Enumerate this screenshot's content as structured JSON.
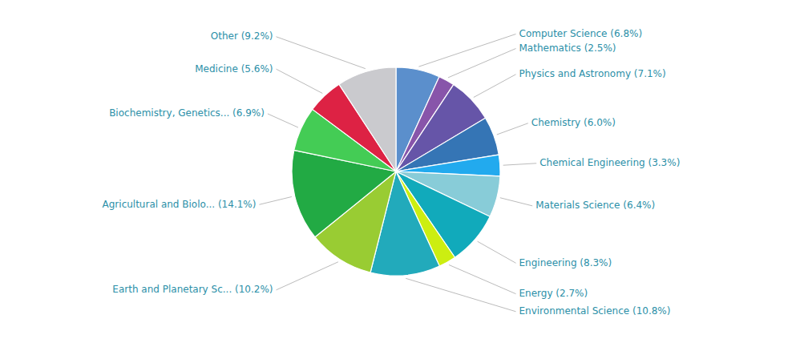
{
  "chart_data": {
    "type": "pie",
    "categories": [
      "Computer Science (6.8%)",
      "Mathematics (2.5%)",
      "Physics and Astronomy (7.1%)",
      "Chemistry (6.0%)",
      "Chemical Engineering (3.3%)",
      "Materials Science (6.4%)",
      "Engineering (8.3%)",
      "Energy (2.7%)",
      "Environmental Science (10.8%)",
      "Earth and Planetary Sc... (10.2%)",
      "Agricultural and Biolo... (14.1%)",
      "Biochemistry, Genetics... (6.9%)",
      "Medicine (5.6%)",
      "Other (9.2%)"
    ],
    "values": [
      6.8,
      2.5,
      7.1,
      6.0,
      3.3,
      6.4,
      8.3,
      2.7,
      10.8,
      10.2,
      14.1,
      6.9,
      5.6,
      9.2
    ],
    "colors": [
      "#5B8FCC",
      "#8855AA",
      "#6655A8",
      "#3575B5",
      "#22AAEE",
      "#88CCD8",
      "#11AABB",
      "#CCEE11",
      "#22AABB",
      "#99CC33",
      "#22AA44",
      "#44CC55",
      "#DD2244",
      "#CACACE"
    ]
  }
}
